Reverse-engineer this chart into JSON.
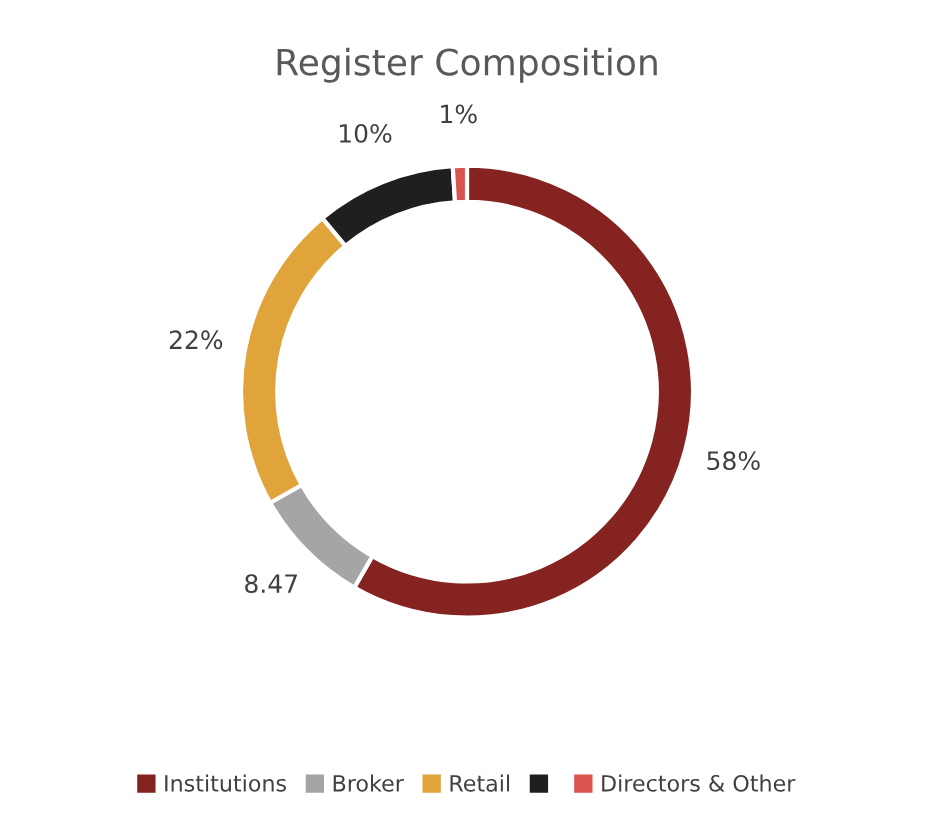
{
  "chart_data": {
    "type": "donut",
    "title": "Register Composition",
    "categories": [
      "Institutions",
      "Broker",
      "Retail",
      null,
      "Directors & Other"
    ],
    "values": [
      58,
      8.47,
      22,
      10,
      1
    ],
    "value_labels": [
      "58%",
      "8.47",
      "22%",
      "10%",
      "1%"
    ],
    "colors": [
      "#84231f",
      "#a5a5a5",
      "#e0a43a",
      "#1f1f1f",
      "#d9534f"
    ],
    "legend": "bottom"
  }
}
